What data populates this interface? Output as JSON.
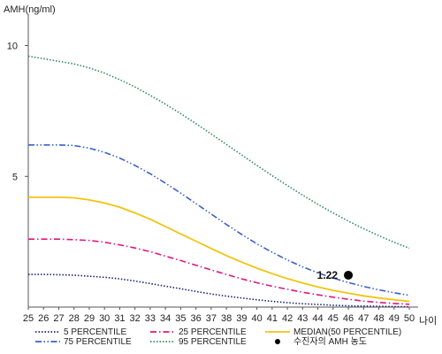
{
  "chart_data": {
    "type": "line",
    "ylabel": "AMH(ng/ml)",
    "xlabel": "나이",
    "xlim": [
      25,
      50
    ],
    "ylim": [
      0,
      11
    ],
    "x_ticks": [
      25,
      26,
      27,
      28,
      29,
      30,
      31,
      32,
      33,
      34,
      35,
      36,
      37,
      38,
      39,
      40,
      41,
      42,
      43,
      44,
      45,
      46,
      47,
      48,
      49,
      50
    ],
    "y_ticks": [
      5,
      10
    ],
    "grid": false,
    "legend_position": "bottom",
    "x": [
      25,
      26,
      27,
      28,
      29,
      30,
      31,
      32,
      33,
      34,
      35,
      36,
      37,
      38,
      39,
      40,
      41,
      42,
      43,
      44,
      45,
      46,
      47,
      48,
      49,
      50
    ],
    "series": [
      {
        "name": "5 PERCENTILE",
        "color": "#1a237e",
        "dash": "dotted",
        "values": [
          1.25,
          1.25,
          1.24,
          1.22,
          1.18,
          1.14,
          1.08,
          1.0,
          0.9,
          0.8,
          0.7,
          0.6,
          0.5,
          0.42,
          0.35,
          0.28,
          0.22,
          0.17,
          0.13,
          0.1,
          0.07,
          0.05,
          0.04,
          0.03,
          0.02,
          0.01
        ]
      },
      {
        "name": "25 PERCENTILE",
        "color": "#e0177f",
        "dash": "dashdot",
        "values": [
          2.6,
          2.6,
          2.6,
          2.58,
          2.55,
          2.48,
          2.38,
          2.26,
          2.12,
          1.95,
          1.78,
          1.6,
          1.42,
          1.25,
          1.08,
          0.93,
          0.8,
          0.68,
          0.57,
          0.47,
          0.38,
          0.3,
          0.23,
          0.18,
          0.14,
          0.11
        ]
      },
      {
        "name": "MEDIAN(50 PERCENTILE)",
        "color": "#f2c40f",
        "dash": "solid",
        "values": [
          4.2,
          4.2,
          4.2,
          4.18,
          4.1,
          3.98,
          3.82,
          3.6,
          3.36,
          3.08,
          2.8,
          2.52,
          2.24,
          1.97,
          1.72,
          1.49,
          1.28,
          1.09,
          0.92,
          0.77,
          0.64,
          0.53,
          0.43,
          0.35,
          0.28,
          0.22
        ]
      },
      {
        "name": "75 PERCENTILE",
        "color": "#3a60c8",
        "dash": "dashdotdot",
        "values": [
          6.2,
          6.2,
          6.2,
          6.18,
          6.08,
          5.92,
          5.7,
          5.42,
          5.1,
          4.74,
          4.36,
          3.96,
          3.56,
          3.16,
          2.78,
          2.42,
          2.1,
          1.8,
          1.54,
          1.31,
          1.11,
          0.94,
          0.79,
          0.66,
          0.55,
          0.45
        ]
      },
      {
        "name": "95 PERCENTILE",
        "color": "#2e8b57",
        "dash": "dotted",
        "values": [
          9.6,
          9.5,
          9.4,
          9.3,
          9.15,
          8.95,
          8.7,
          8.42,
          8.1,
          7.76,
          7.4,
          7.02,
          6.62,
          6.22,
          5.82,
          5.42,
          5.03,
          4.65,
          4.28,
          3.93,
          3.6,
          3.29,
          3.0,
          2.73,
          2.48,
          2.25
        ]
      }
    ],
    "points": [
      {
        "name": "수진자의 AMH 농도",
        "x": 46,
        "y": 1.22,
        "label": "1.22",
        "color": "#000000"
      }
    ]
  }
}
